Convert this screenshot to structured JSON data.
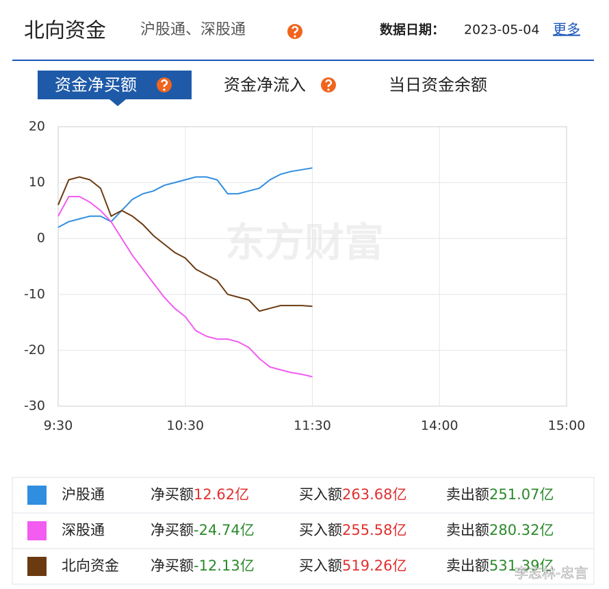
{
  "header": {
    "title": "北向资金",
    "subtitle": "沪股通、深股通",
    "date_label": "数据日期：",
    "date": "2023-05-04",
    "more": "更多"
  },
  "tabs": [
    "资金净买额",
    "资金净流入",
    "当日资金余额"
  ],
  "chart_data": {
    "type": "line",
    "watermark": "东方财富",
    "x": [
      "9:30",
      "9:35",
      "9:40",
      "9:45",
      "9:50",
      "9:55",
      "10:00",
      "10:05",
      "10:10",
      "10:15",
      "10:20",
      "10:25",
      "10:30",
      "10:35",
      "10:40",
      "10:45",
      "10:50",
      "10:55",
      "11:00",
      "11:05",
      "11:10",
      "11:15",
      "11:20",
      "11:25",
      "11:30"
    ],
    "xlim": [
      "9:30",
      "15:00"
    ],
    "xticks": [
      "9:30",
      "10:30",
      "11:30",
      "14:00",
      "15:00"
    ],
    "ylim": [
      -30,
      20
    ],
    "yticks": [
      -30,
      -20,
      -10,
      0,
      10,
      20
    ],
    "grid": true,
    "series": [
      {
        "name": "沪股通",
        "color": "#2f8ee0",
        "values": [
          2,
          3,
          3.5,
          4,
          4,
          3,
          5,
          7,
          8,
          8.5,
          9.5,
          10,
          10.5,
          11,
          11,
          10.5,
          8,
          8,
          8.5,
          9,
          10.5,
          11.5,
          12,
          12.3,
          12.62
        ]
      },
      {
        "name": "深股通",
        "color": "#f25cf0",
        "values": [
          4,
          7.5,
          7.5,
          6.5,
          5,
          3,
          0,
          -3,
          -5.5,
          -8,
          -10.5,
          -12.5,
          -14,
          -16.5,
          -17.5,
          -18,
          -18,
          -18.5,
          -19.5,
          -21.5,
          -23,
          -23.5,
          -24,
          -24.3,
          -24.74
        ]
      },
      {
        "name": "北向资金",
        "color": "#6b3a10",
        "values": [
          6,
          10.5,
          11,
          10.5,
          9,
          4,
          5,
          4,
          2.5,
          0.5,
          -1,
          -2.5,
          -3.5,
          -5.5,
          -6.5,
          -7.5,
          -10,
          -10.5,
          -11,
          -13,
          -12.5,
          -12,
          -12,
          -12,
          -12.13
        ]
      }
    ],
    "legend_table": {
      "columns": [
        "净买额",
        "买入额",
        "卖出额"
      ],
      "rows": [
        [
          {
            "value": "12.62亿",
            "color": "#e03030"
          },
          {
            "value": "263.68亿",
            "color": "#e03030"
          },
          {
            "value": "251.07亿",
            "color": "#2a8a2a"
          }
        ],
        [
          {
            "value": "-24.74亿",
            "color": "#2a8a2a"
          },
          {
            "value": "255.58亿",
            "color": "#e03030"
          },
          {
            "value": "280.32亿",
            "color": "#2a8a2a"
          }
        ],
        [
          {
            "value": "-12.13亿",
            "color": "#2a8a2a"
          },
          {
            "value": "519.26亿",
            "color": "#e03030"
          },
          {
            "value": "531.39亿",
            "color": "#2a8a2a"
          }
        ]
      ]
    }
  },
  "credit": "李志林-忠言"
}
